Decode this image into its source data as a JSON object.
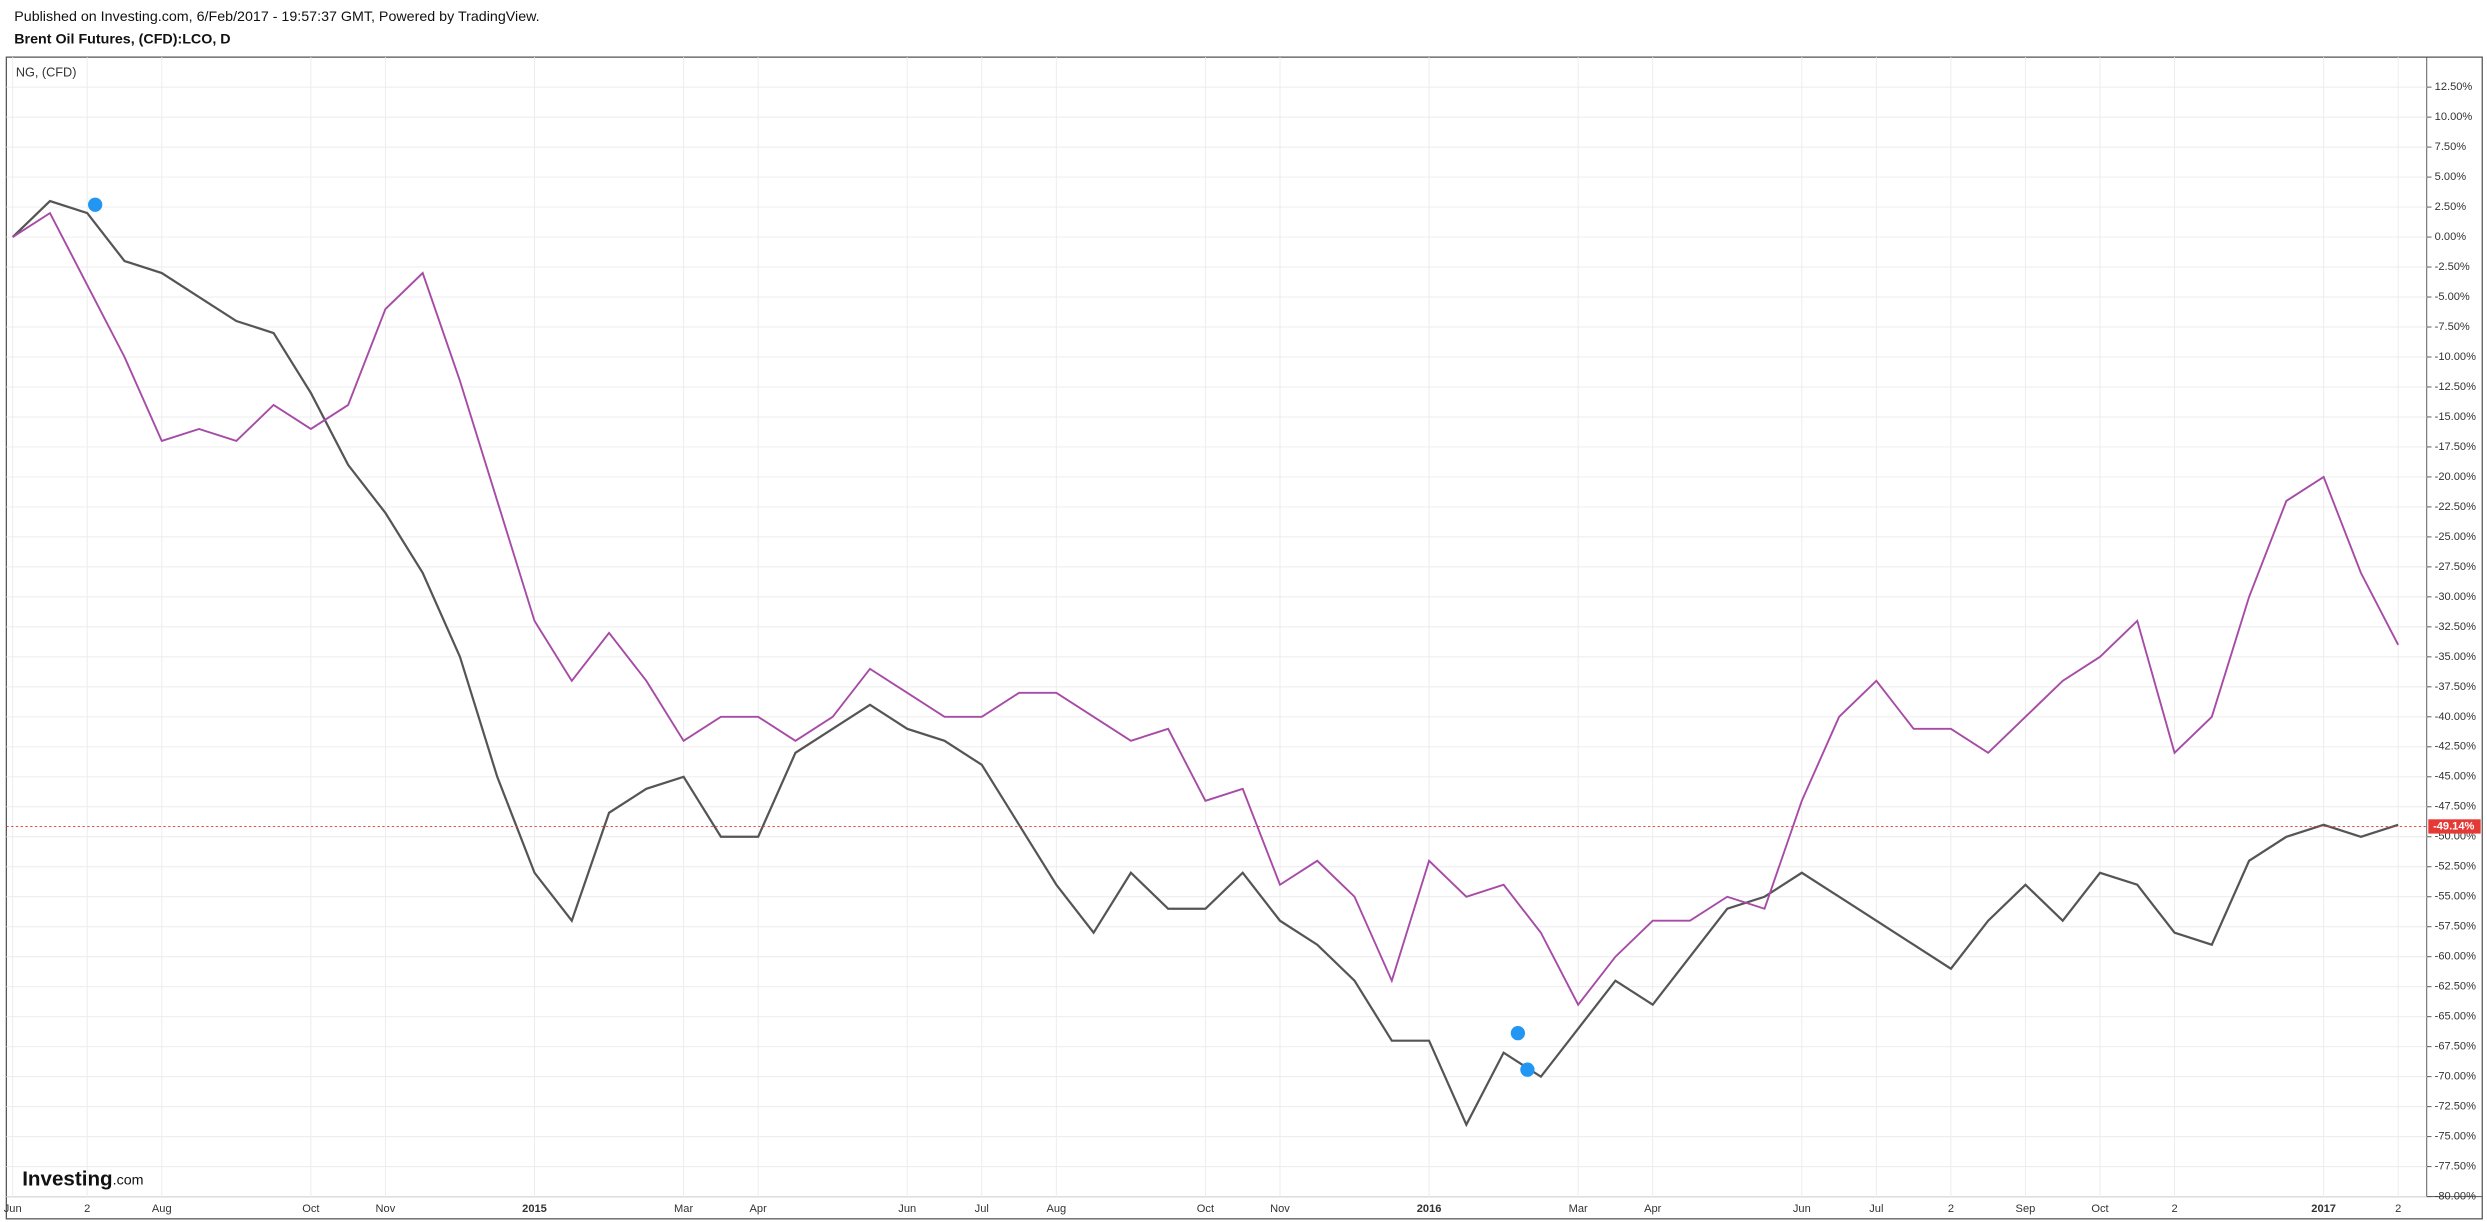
{
  "header": {
    "published": "Published on Investing.com, 6/Feb/2017 - 19:57:37 GMT, Powered by TradingView.",
    "symbol": "Brent Oil Futures, (CFD):LCO, D"
  },
  "logo": {
    "main": "Investing",
    "suffix": ".com"
  },
  "chart_data": {
    "type": "line",
    "legend_label": "NG,  (CFD)",
    "categories": [
      "Jun",
      null,
      "2",
      null,
      "Aug",
      null,
      null,
      null,
      "Oct",
      null,
      "Nov",
      null,
      null,
      null,
      "2015",
      null,
      null,
      null,
      "Mar",
      null,
      "Apr",
      null,
      null,
      null,
      "Jun",
      null,
      "Jul",
      null,
      "Aug",
      null,
      null,
      null,
      "Oct",
      null,
      "Nov",
      null,
      null,
      null,
      "2016",
      null,
      null,
      null,
      "Mar",
      null,
      "Apr",
      null,
      null,
      null,
      "Jun",
      null,
      "Jul",
      null,
      "2",
      null,
      "Sep",
      null,
      "Oct",
      null,
      "2",
      null,
      null,
      null,
      "2017",
      null,
      "2"
    ],
    "series": [
      {
        "name": "Brent Oil Futures",
        "color": "#555555",
        "values": [
          0,
          3,
          2,
          -2,
          -3,
          -5,
          -7,
          -8,
          -13,
          -19,
          -23,
          -28,
          -35,
          -45,
          -53,
          -57,
          -48,
          -46,
          -45,
          -50,
          -50,
          -43,
          -41,
          -39,
          -41,
          -42,
          -44,
          -49,
          -54,
          -58,
          -53,
          -56,
          -56,
          -53,
          -57,
          -59,
          -62,
          -67,
          -67,
          -74,
          -68,
          -70,
          -66,
          -62,
          -64,
          -60,
          -56,
          -55,
          -53,
          -55,
          -57,
          -59,
          -61,
          -57,
          -54,
          -57,
          -53,
          -54,
          -58,
          -59,
          -52,
          -50,
          -49,
          -50,
          -49
        ]
      },
      {
        "name": "NG",
        "color": "#a64ca6",
        "values": [
          0,
          2,
          -4,
          -10,
          -17,
          -16,
          -17,
          -14,
          -16,
          -14,
          -6,
          -3,
          -12,
          -22,
          -32,
          -37,
          -33,
          -37,
          -42,
          -40,
          -40,
          -42,
          -40,
          -36,
          -38,
          -40,
          -40,
          -38,
          -38,
          -40,
          -42,
          -41,
          -47,
          -46,
          -54,
          -52,
          -55,
          -62,
          -52,
          -55,
          -54,
          -58,
          -64,
          -60,
          -57,
          -57,
          -55,
          -56,
          -47,
          -40,
          -37,
          -41,
          -41,
          -43,
          -40,
          -37,
          -35,
          -32,
          -43,
          -40,
          -30,
          -22,
          -20,
          -28,
          -34
        ]
      }
    ],
    "last_value": -49.14,
    "last_value_label": "-49.14%",
    "last_value_color": "#e53935",
    "ylim": [
      -80,
      15
    ],
    "yticks": [
      {
        "value": 12.5,
        "label": "12.50%"
      },
      {
        "value": 10,
        "label": "10.00%"
      },
      {
        "value": 7.5,
        "label": "7.50%"
      },
      {
        "value": 5,
        "label": "5.00%"
      },
      {
        "value": 2.5,
        "label": "2.50%"
      },
      {
        "value": 0,
        "label": "0.00%"
      },
      {
        "value": -2.5,
        "label": "-2.50%"
      },
      {
        "value": -5,
        "label": "-5.00%"
      },
      {
        "value": -7.5,
        "label": "-7.50%"
      },
      {
        "value": -10,
        "label": "-10.00%"
      },
      {
        "value": -12.5,
        "label": "-12.50%"
      },
      {
        "value": -15,
        "label": "-15.00%"
      },
      {
        "value": -17.5,
        "label": "-17.50%"
      },
      {
        "value": -20,
        "label": "-20.00%"
      },
      {
        "value": -22.5,
        "label": "-22.50%"
      },
      {
        "value": -25,
        "label": "-25.00%"
      },
      {
        "value": -27.5,
        "label": "-27.50%"
      },
      {
        "value": -30,
        "label": "-30.00%"
      },
      {
        "value": -32.5,
        "label": "-32.50%"
      },
      {
        "value": -35,
        "label": "-35.00%"
      },
      {
        "value": -37.5,
        "label": "-37.50%"
      },
      {
        "value": -40,
        "label": "-40.00%"
      },
      {
        "value": -42.5,
        "label": "-42.50%"
      },
      {
        "value": -45,
        "label": "-45.00%"
      },
      {
        "value": -47.5,
        "label": "-47.50%"
      },
      {
        "value": -50,
        "label": "-50.00%"
      },
      {
        "value": -52.5,
        "label": "-52.50%"
      },
      {
        "value": -55,
        "label": "-55.00%"
      },
      {
        "value": -57.5,
        "label": "-57.50%"
      },
      {
        "value": -60,
        "label": "-60.00%"
      },
      {
        "value": -62.5,
        "label": "-62.50%"
      },
      {
        "value": -65,
        "label": "-65.00%"
      },
      {
        "value": -67.5,
        "label": "-67.50%"
      },
      {
        "value": -70,
        "label": "-70.00%"
      },
      {
        "value": -72.5,
        "label": "-72.50%"
      },
      {
        "value": -75,
        "label": "-75.00%"
      },
      {
        "value": -77.5,
        "label": "-77.50%"
      },
      {
        "value": -80,
        "label": "-80.00%"
      }
    ],
    "grid": true
  }
}
